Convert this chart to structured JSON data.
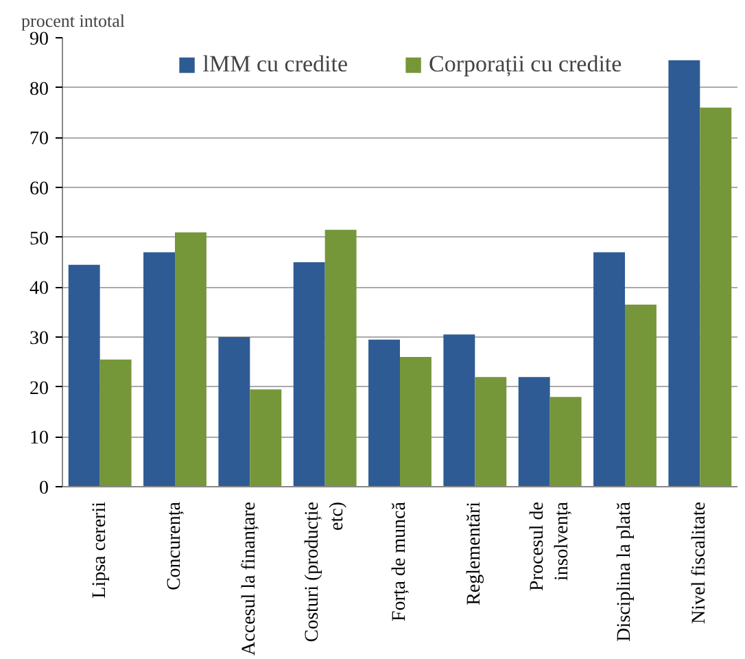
{
  "chart_data": {
    "type": "bar",
    "ylabel": "procent intotal",
    "categories": [
      "Lipsa cererii",
      "Concurența",
      "Accesul la finanțare",
      "Costuri (producție\netc)",
      "Forța de muncă",
      "Reglementări",
      "Procesul de\ninsolvența",
      "Disciplina la plată",
      "Nivel fiscalitate"
    ],
    "series": [
      {
        "name": "lMM cu credite",
        "color": "#2e5b94",
        "values": [
          44.5,
          47,
          30,
          45,
          29.5,
          30.5,
          22,
          47,
          85.5
        ]
      },
      {
        "name": "Corporații cu credite",
        "color": "#76963a",
        "values": [
          25.5,
          51,
          19.5,
          51.5,
          26,
          22,
          18,
          36.5,
          76
        ]
      }
    ],
    "ylim": [
      0,
      90
    ],
    "yticks": [
      0,
      10,
      20,
      30,
      40,
      50,
      60,
      70,
      80,
      90
    ],
    "grid": "y",
    "legend": "top"
  }
}
